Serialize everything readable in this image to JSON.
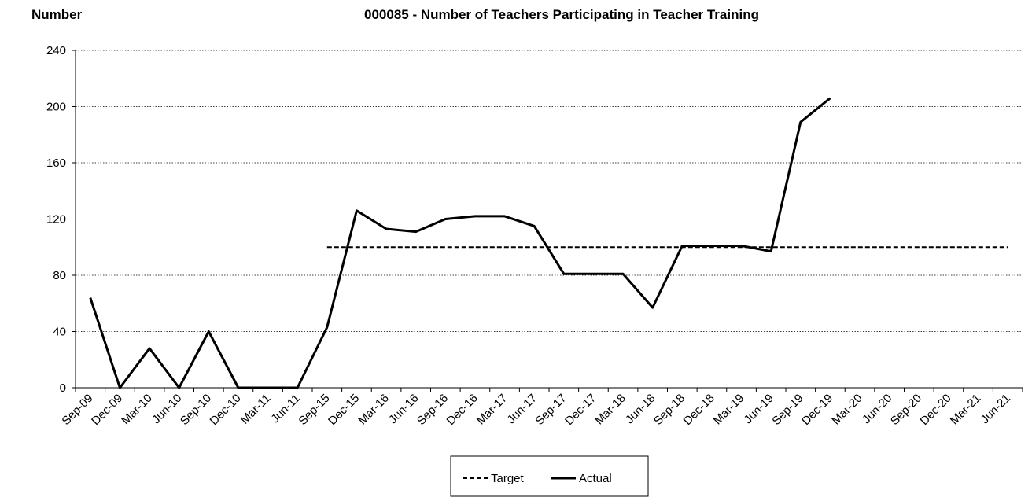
{
  "chart_data": {
    "type": "line",
    "title": "000085 - Number of Teachers Participating in Teacher Training",
    "y_label": "Number",
    "categories": [
      "Sep-09",
      "Dec-09",
      "Mar-10",
      "Jun-10",
      "Sep-10",
      "Dec-10",
      "Mar-11",
      "Jun-11",
      "Sep-15",
      "Dec-15",
      "Mar-16",
      "Jun-16",
      "Sep-16",
      "Dec-16",
      "Mar-17",
      "Jun-17",
      "Sep-17",
      "Dec-17",
      "Mar-18",
      "Jun-18",
      "Sep-18",
      "Dec-18",
      "Mar-19",
      "Jun-19",
      "Sep-19",
      "Dec-19",
      "Mar-20",
      "Jun-20",
      "Sep-20",
      "Dec-20",
      "Mar-21",
      "Jun-21"
    ],
    "series": [
      {
        "name": "Target",
        "color": "#000000",
        "dash": true,
        "values": [
          null,
          null,
          null,
          null,
          null,
          null,
          null,
          null,
          100,
          100,
          100,
          100,
          100,
          100,
          100,
          100,
          100,
          100,
          100,
          100,
          100,
          100,
          100,
          100,
          100,
          100,
          100,
          100,
          100,
          100,
          100,
          100
        ]
      },
      {
        "name": "Actual",
        "color": "#000000",
        "dash": false,
        "values": [
          64,
          0,
          28,
          0,
          40,
          0,
          0,
          0,
          43,
          126,
          113,
          111,
          120,
          122,
          122,
          115,
          81,
          81,
          81,
          57,
          101,
          101,
          101,
          97,
          189,
          206,
          null,
          null,
          null,
          null,
          null,
          null
        ]
      }
    ],
    "ylim": [
      0,
      240
    ],
    "yticks": [
      0,
      40,
      80,
      120,
      160,
      200,
      240
    ],
    "grid": true,
    "legend": "bottom"
  }
}
